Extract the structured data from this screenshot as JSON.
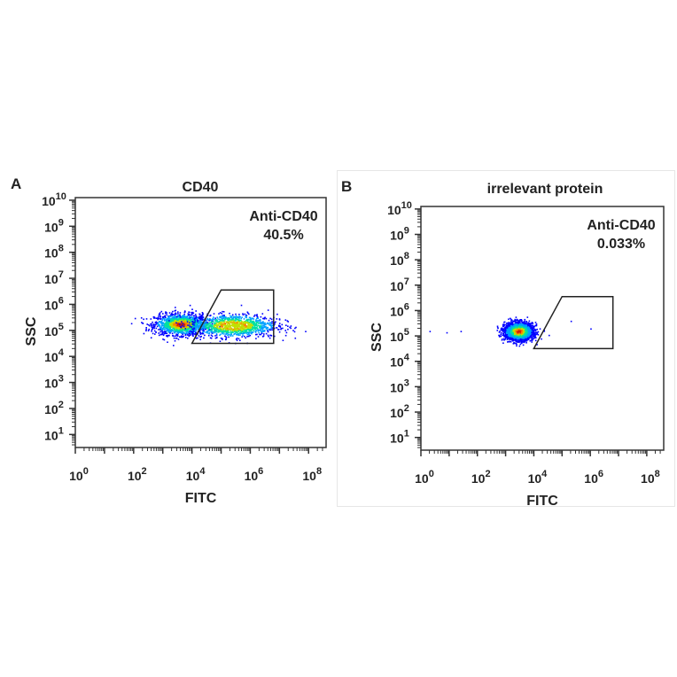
{
  "chart_data": [
    {
      "type": "scatter",
      "panel_label": "A",
      "title": "CD40",
      "xlabel": "FITC",
      "ylabel": "SSC",
      "x_scale": "log",
      "y_scale": "log",
      "xlim_log10": [
        0,
        8.6
      ],
      "ylim_log10": [
        0.5,
        10.1
      ],
      "x_ticks": [
        "0",
        "2",
        "4",
        "6",
        "8"
      ],
      "y_ticks": [
        "1",
        "2",
        "3",
        "4",
        "5",
        "6",
        "7",
        "8",
        "9",
        "10"
      ],
      "gate": {
        "name": "Anti-CD40",
        "percent": "40.5%",
        "polygon_log10": [
          [
            4.0,
            4.5
          ],
          [
            5.0,
            6.55
          ],
          [
            6.8,
            6.55
          ],
          [
            6.8,
            4.5
          ]
        ]
      },
      "populations_log10": [
        {
          "x_center": 3.6,
          "y_center": 5.25,
          "x_spread": 0.45,
          "y_spread": 0.2,
          "share": 0.55
        },
        {
          "x_center": 5.4,
          "y_center": 5.2,
          "x_spread": 0.75,
          "y_spread": 0.22,
          "share": 0.45
        }
      ],
      "colormap": [
        "#0000ff",
        "#00a0ff",
        "#00e0a0",
        "#c0e000",
        "#ff8000",
        "#d02000"
      ]
    },
    {
      "type": "scatter",
      "panel_label": "B",
      "title": "irrelevant protein",
      "xlabel": "FITC",
      "ylabel": "SSC",
      "x_scale": "log",
      "y_scale": "log",
      "xlim_log10": [
        0,
        8.6
      ],
      "ylim_log10": [
        0.5,
        10.1
      ],
      "x_ticks": [
        "0",
        "2",
        "4",
        "6",
        "8"
      ],
      "y_ticks": [
        "1",
        "2",
        "3",
        "4",
        "5",
        "6",
        "7",
        "8",
        "9",
        "10"
      ],
      "gate": {
        "name": "Anti-CD40",
        "percent": "0.033%",
        "polygon_log10": [
          [
            4.0,
            4.5
          ],
          [
            5.0,
            6.55
          ],
          [
            6.8,
            6.55
          ],
          [
            6.8,
            4.5
          ]
        ]
      },
      "populations_log10": [
        {
          "x_center": 3.45,
          "y_center": 5.2,
          "x_spread": 0.25,
          "y_spread": 0.17,
          "share": 1.0
        }
      ],
      "outliers_log10": [
        [
          0.3,
          5.2
        ],
        [
          0.9,
          5.15
        ],
        [
          1.4,
          5.2
        ],
        [
          5.3,
          5.6
        ],
        [
          6.0,
          5.3
        ]
      ],
      "colormap": [
        "#0000ff",
        "#00a0ff",
        "#00e0a0",
        "#c0e000",
        "#ff8000",
        "#d02000"
      ]
    }
  ]
}
